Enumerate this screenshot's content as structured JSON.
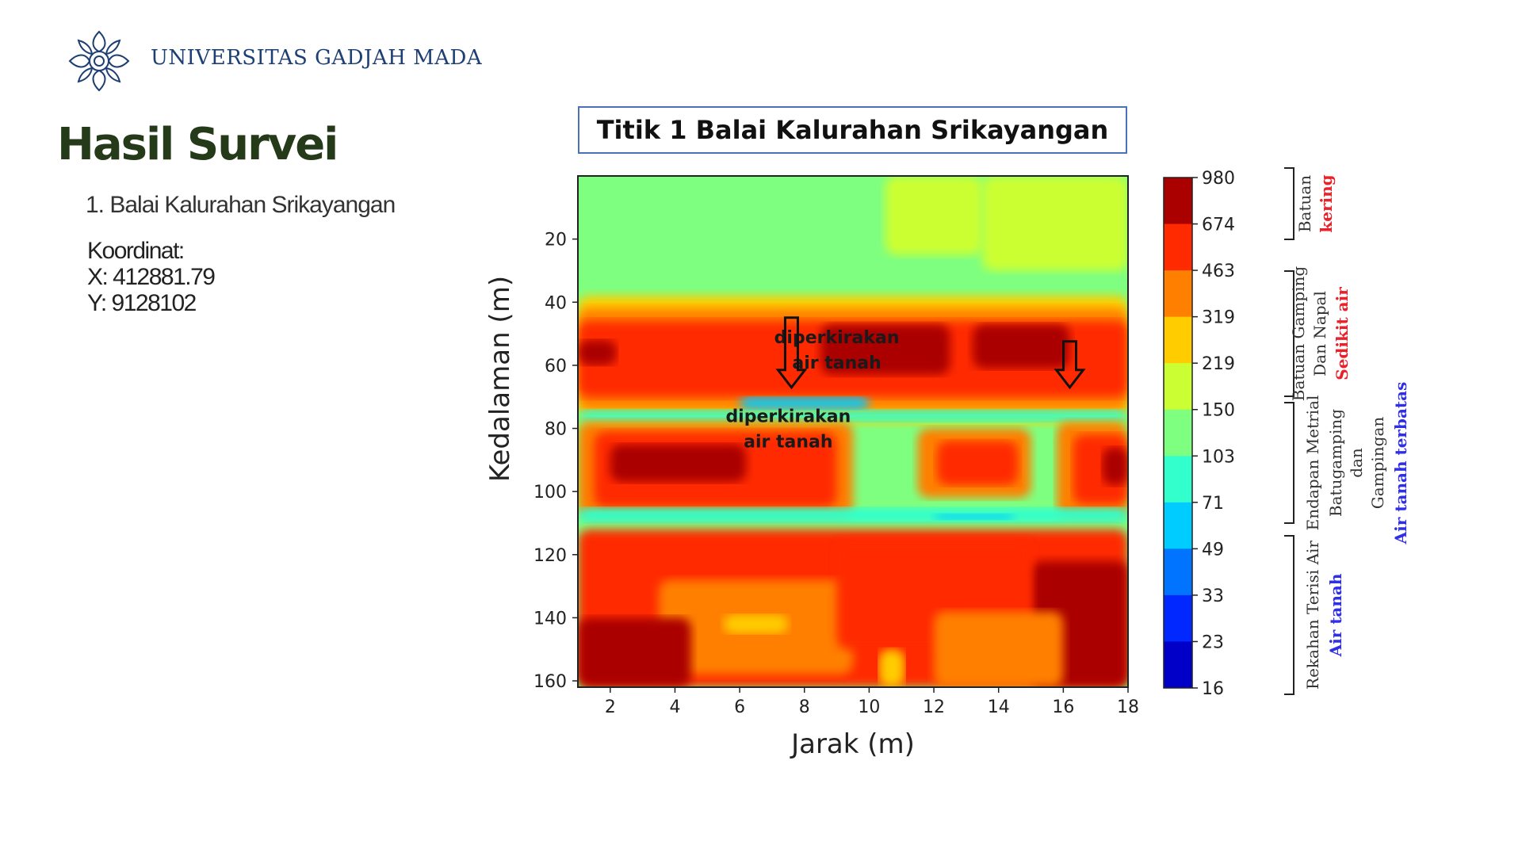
{
  "header": {
    "university": "UNIVERSITAS GADJAH MADA",
    "logo_icon": "ugm-seal-icon"
  },
  "page": {
    "title": "Hasil Survei",
    "subtitle": "1. Balai Kalurahan Srikayangan",
    "coord_label": "Koordinat:",
    "x_coord": "X: 412881.79",
    "y_coord": "Y: 9128102"
  },
  "chart_data": {
    "type": "heatmap",
    "title": "Titik 1 Balai Kalurahan Srikayangan",
    "xlabel": "Jarak (m)",
    "ylabel": "Kedalaman (m)",
    "xlim": [
      1,
      18
    ],
    "ylim": [
      0,
      162
    ],
    "y_inverted": true,
    "x_ticks": [
      2,
      4,
      6,
      8,
      10,
      12,
      14,
      16,
      18
    ],
    "y_ticks": [
      20,
      40,
      60,
      80,
      100,
      120,
      140,
      160
    ],
    "colorbar": {
      "levels": [
        980,
        674,
        463,
        319,
        219,
        150,
        103,
        71,
        49,
        33,
        23,
        16
      ],
      "colors": [
        "#aa0000",
        "#ff2a00",
        "#ff7f00",
        "#ffcc00",
        "#ccff33",
        "#7fff7f",
        "#33ffcc",
        "#00ccff",
        "#0074ff",
        "#0028ff",
        "#0000c8",
        "#00008b"
      ]
    },
    "annotations": [
      {
        "text_line1": "diperkirakan",
        "text_line2": "air tanah",
        "x": 9.0,
        "y": 53,
        "arrow_to": [
          7.6,
          67
        ]
      },
      {
        "text_line1": "diperkirakan",
        "text_line2": "air tanah",
        "x": 7.5,
        "y": 78,
        "arrow_to": null
      },
      {
        "text_line1": "",
        "text_line2": "",
        "x": 16.2,
        "y": 52,
        "arrow_to": [
          16.2,
          67
        ]
      }
    ],
    "interpretation": [
      {
        "label": "Batuan",
        "highlight": "kering",
        "highlight_color": "#e8212a"
      },
      {
        "label": "Batuan Gamping|Dan Napal",
        "highlight": "Sedikit air",
        "highlight_color": "#e8212a"
      },
      {
        "label": "Endapan Metrial|Batugamping|dan|Gampingan",
        "highlight": "Air tanah terbatas",
        "highlight_color": "#2f2fe6"
      },
      {
        "label": "Rekahan Terisi Air",
        "highlight": "Air tanah",
        "highlight_color": "#2f2fe6"
      }
    ]
  }
}
